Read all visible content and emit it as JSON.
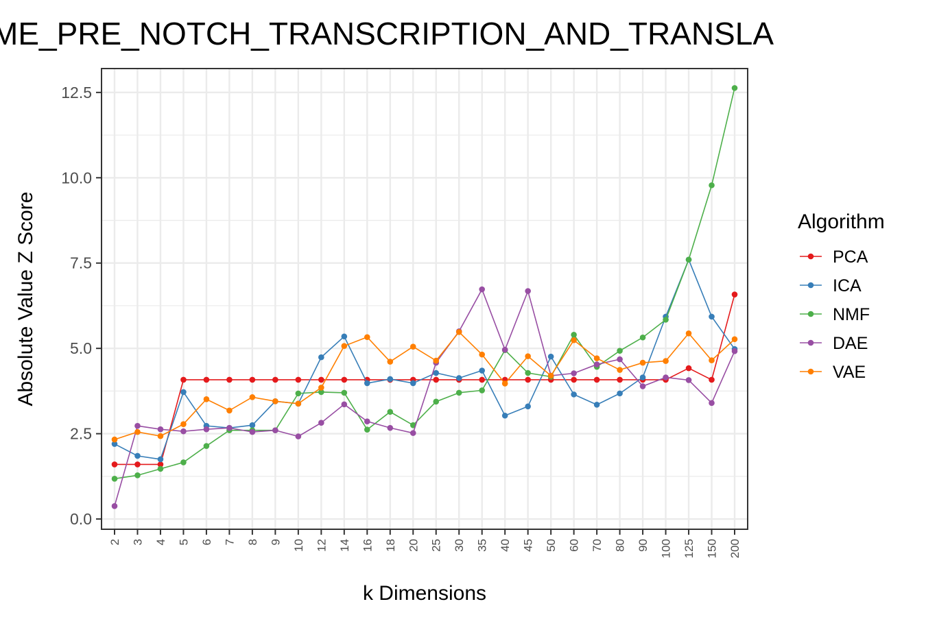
{
  "chart_data": {
    "type": "line",
    "title": "ME_PRE_NOTCH_TRANSCRIPTION_AND_TRANSLA",
    "xlabel": "k Dimensions",
    "ylabel": "Absolute Value Z Score",
    "categories": [
      "2",
      "3",
      "4",
      "5",
      "6",
      "7",
      "8",
      "9",
      "10",
      "12",
      "14",
      "16",
      "18",
      "20",
      "25",
      "30",
      "35",
      "40",
      "45",
      "50",
      "60",
      "70",
      "80",
      "90",
      "100",
      "125",
      "150",
      "200"
    ],
    "ylim": [
      -0.3,
      13.2
    ],
    "yticks": [
      0.0,
      2.5,
      5.0,
      7.5,
      10.0,
      12.5
    ],
    "ytick_labels": [
      "0.0",
      "2.5",
      "5.0",
      "7.5",
      "10.0",
      "12.5"
    ],
    "grid": true,
    "legend": {
      "title": "Algorithm",
      "position": "right"
    },
    "series": [
      {
        "name": "PCA",
        "color": "#e41a1c",
        "values": [
          1.6,
          1.6,
          1.6,
          4.08,
          4.08,
          4.08,
          4.08,
          4.08,
          4.08,
          4.08,
          4.08,
          4.08,
          4.08,
          4.08,
          4.08,
          4.08,
          4.08,
          4.08,
          4.08,
          4.08,
          4.08,
          4.08,
          4.08,
          4.08,
          4.08,
          4.42,
          4.08,
          6.58
        ]
      },
      {
        "name": "ICA",
        "color": "#377eb8",
        "values": [
          2.2,
          1.85,
          1.75,
          3.72,
          2.73,
          2.67,
          2.75,
          3.45,
          3.38,
          4.74,
          5.35,
          3.98,
          4.1,
          3.98,
          4.28,
          4.13,
          4.35,
          3.03,
          3.3,
          4.76,
          3.65,
          3.35,
          3.68,
          4.15,
          5.93,
          7.6,
          5.93,
          4.98
        ]
      },
      {
        "name": "NMF",
        "color": "#4daf4a",
        "values": [
          1.18,
          1.28,
          1.47,
          1.66,
          2.14,
          2.6,
          2.6,
          2.6,
          3.68,
          3.72,
          3.7,
          2.62,
          3.14,
          2.75,
          3.44,
          3.7,
          3.77,
          4.95,
          4.28,
          4.17,
          5.4,
          4.46,
          4.93,
          5.32,
          5.84,
          7.6,
          9.78,
          12.63
        ]
      },
      {
        "name": "DAE",
        "color": "#984ea3",
        "values": [
          0.38,
          2.73,
          2.63,
          2.57,
          2.63,
          2.67,
          2.55,
          2.6,
          2.42,
          2.82,
          3.36,
          2.86,
          2.67,
          2.52,
          4.58,
          5.5,
          6.73,
          4.96,
          6.68,
          4.2,
          4.27,
          4.53,
          4.68,
          3.89,
          4.15,
          4.07,
          3.4,
          4.92
        ]
      },
      {
        "name": "VAE",
        "color": "#ff7f00",
        "values": [
          2.33,
          2.55,
          2.43,
          2.78,
          3.51,
          3.18,
          3.57,
          3.45,
          3.38,
          3.85,
          5.07,
          5.33,
          4.61,
          5.05,
          4.64,
          5.48,
          4.82,
          3.97,
          4.77,
          4.2,
          5.24,
          4.71,
          4.37,
          4.58,
          4.63,
          5.44,
          4.65,
          5.27
        ]
      }
    ]
  }
}
